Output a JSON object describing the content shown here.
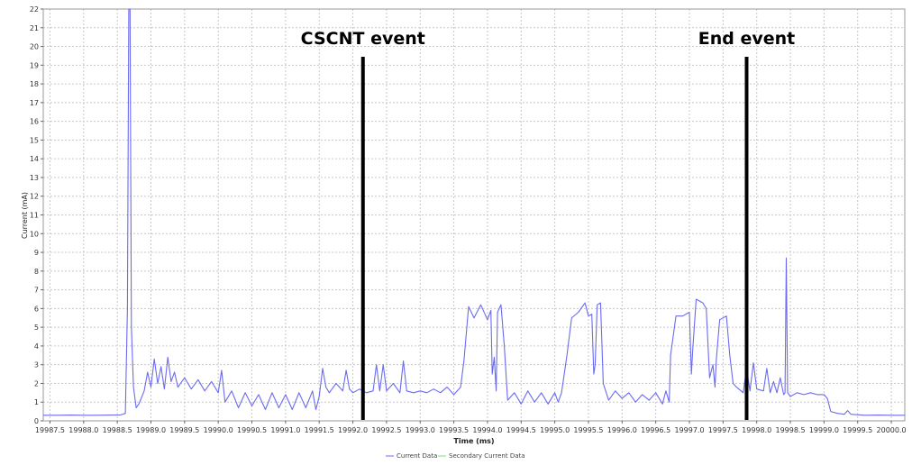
{
  "chart_data": {
    "type": "line",
    "xlabel": "Time (ms)",
    "ylabel": "Current (mA)",
    "xlim": [
      19987.4,
      20000.2
    ],
    "ylim": [
      0,
      22
    ],
    "x_ticks": [
      "19987.5",
      "19988.0",
      "19988.5",
      "19989.0",
      "19989.5",
      "19990.0",
      "19990.5",
      "19991.0",
      "19991.5",
      "19992.0",
      "19992.5",
      "19993.0",
      "19993.5",
      "19994.0",
      "19994.5",
      "19995.0",
      "19995.5",
      "19996.0",
      "19996.5",
      "19997.0",
      "19997.5",
      "19998.0",
      "19998.5",
      "19999.0",
      "19999.5",
      "20000.0"
    ],
    "y_ticks": [
      "0",
      "1",
      "2",
      "3",
      "4",
      "5",
      "6",
      "7",
      "8",
      "9",
      "10",
      "11",
      "12",
      "13",
      "14",
      "15",
      "16",
      "17",
      "18",
      "19",
      "20",
      "21",
      "22"
    ],
    "grid": true,
    "legend_placement": "bottom-center",
    "annotations": [
      {
        "label": "CSCNT event",
        "x": 19992.15
      },
      {
        "label": "End event",
        "x": 19997.85
      }
    ],
    "series": [
      {
        "name": "Current Data",
        "color": "#6b6bf0",
        "points": [
          [
            19987.4,
            0.3
          ],
          [
            19987.6,
            0.3
          ],
          [
            19987.8,
            0.31
          ],
          [
            19988.0,
            0.3
          ],
          [
            19988.2,
            0.3
          ],
          [
            19988.4,
            0.31
          ],
          [
            19988.55,
            0.32
          ],
          [
            19988.62,
            0.4
          ],
          [
            19988.65,
            6.0
          ],
          [
            19988.67,
            22
          ],
          [
            19988.69,
            22
          ],
          [
            19988.71,
            5.0
          ],
          [
            19988.74,
            1.8
          ],
          [
            19988.78,
            0.7
          ],
          [
            19988.82,
            0.9
          ],
          [
            19988.9,
            1.6
          ],
          [
            19988.95,
            2.6
          ],
          [
            19989.0,
            1.8
          ],
          [
            19989.05,
            3.3
          ],
          [
            19989.1,
            2.0
          ],
          [
            19989.15,
            2.9
          ],
          [
            19989.2,
            1.7
          ],
          [
            19989.25,
            3.4
          ],
          [
            19989.3,
            2.1
          ],
          [
            19989.35,
            2.6
          ],
          [
            19989.4,
            1.8
          ],
          [
            19989.5,
            2.3
          ],
          [
            19989.6,
            1.7
          ],
          [
            19989.7,
            2.2
          ],
          [
            19989.8,
            1.6
          ],
          [
            19989.9,
            2.1
          ],
          [
            19990.0,
            1.5
          ],
          [
            19990.05,
            2.7
          ],
          [
            19990.1,
            1.0
          ],
          [
            19990.2,
            1.6
          ],
          [
            19990.3,
            0.7
          ],
          [
            19990.4,
            1.5
          ],
          [
            19990.5,
            0.8
          ],
          [
            19990.6,
            1.4
          ],
          [
            19990.7,
            0.6
          ],
          [
            19990.8,
            1.5
          ],
          [
            19990.9,
            0.7
          ],
          [
            19991.0,
            1.4
          ],
          [
            19991.1,
            0.6
          ],
          [
            19991.2,
            1.5
          ],
          [
            19991.3,
            0.7
          ],
          [
            19991.4,
            1.6
          ],
          [
            19991.45,
            0.6
          ],
          [
            19991.5,
            1.3
          ],
          [
            19991.55,
            2.8
          ],
          [
            19991.6,
            1.8
          ],
          [
            19991.65,
            1.5
          ],
          [
            19991.75,
            2.0
          ],
          [
            19991.85,
            1.6
          ],
          [
            19991.9,
            2.7
          ],
          [
            19991.95,
            1.7
          ],
          [
            19992.0,
            1.5
          ],
          [
            19992.1,
            1.7
          ],
          [
            19992.2,
            1.5
          ],
          [
            19992.3,
            1.6
          ],
          [
            19992.35,
            3.0
          ],
          [
            19992.4,
            1.6
          ],
          [
            19992.45,
            3.0
          ],
          [
            19992.5,
            1.6
          ],
          [
            19992.6,
            2.0
          ],
          [
            19992.7,
            1.5
          ],
          [
            19992.75,
            3.2
          ],
          [
            19992.8,
            1.6
          ],
          [
            19992.9,
            1.5
          ],
          [
            19993.0,
            1.6
          ],
          [
            19993.1,
            1.5
          ],
          [
            19993.2,
            1.7
          ],
          [
            19993.3,
            1.5
          ],
          [
            19993.4,
            1.8
          ],
          [
            19993.5,
            1.4
          ],
          [
            19993.6,
            1.8
          ],
          [
            19993.65,
            3.2
          ],
          [
            19993.72,
            6.1
          ],
          [
            19993.8,
            5.5
          ],
          [
            19993.9,
            6.2
          ],
          [
            19994.0,
            5.4
          ],
          [
            19994.05,
            5.9
          ],
          [
            19994.07,
            2.5
          ],
          [
            19994.1,
            3.4
          ],
          [
            19994.13,
            1.6
          ],
          [
            19994.15,
            5.8
          ],
          [
            19994.2,
            6.2
          ],
          [
            19994.25,
            4.0
          ],
          [
            19994.3,
            1.1
          ],
          [
            19994.4,
            1.5
          ],
          [
            19994.5,
            0.9
          ],
          [
            19994.6,
            1.6
          ],
          [
            19994.7,
            1.0
          ],
          [
            19994.8,
            1.5
          ],
          [
            19994.9,
            0.9
          ],
          [
            19995.0,
            1.5
          ],
          [
            19995.05,
            1.0
          ],
          [
            19995.1,
            1.5
          ],
          [
            19995.18,
            3.5
          ],
          [
            19995.25,
            5.5
          ],
          [
            19995.35,
            5.8
          ],
          [
            19995.45,
            6.3
          ],
          [
            19995.5,
            5.6
          ],
          [
            19995.55,
            5.7
          ],
          [
            19995.58,
            2.5
          ],
          [
            19995.6,
            3.0
          ],
          [
            19995.63,
            6.2
          ],
          [
            19995.68,
            6.3
          ],
          [
            19995.72,
            2.0
          ],
          [
            19995.8,
            1.1
          ],
          [
            19995.9,
            1.6
          ],
          [
            19996.0,
            1.2
          ],
          [
            19996.1,
            1.5
          ],
          [
            19996.2,
            1.0
          ],
          [
            19996.3,
            1.4
          ],
          [
            19996.4,
            1.1
          ],
          [
            19996.5,
            1.5
          ],
          [
            19996.6,
            0.9
          ],
          [
            19996.65,
            1.6
          ],
          [
            19996.7,
            1.0
          ],
          [
            19996.72,
            3.5
          ],
          [
            19996.8,
            5.6
          ],
          [
            19996.9,
            5.6
          ],
          [
            19997.0,
            5.8
          ],
          [
            19997.03,
            2.5
          ],
          [
            19997.05,
            3.8
          ],
          [
            19997.1,
            6.5
          ],
          [
            19997.2,
            6.3
          ],
          [
            19997.25,
            6.0
          ],
          [
            19997.3,
            2.3
          ],
          [
            19997.35,
            3.0
          ],
          [
            19997.38,
            1.8
          ],
          [
            19997.4,
            3.3
          ],
          [
            19997.45,
            5.4
          ],
          [
            19997.55,
            5.6
          ],
          [
            19997.6,
            3.5
          ],
          [
            19997.65,
            2.0
          ],
          [
            19997.7,
            1.8
          ],
          [
            19997.8,
            1.5
          ],
          [
            19997.85,
            2.8
          ],
          [
            19997.9,
            1.6
          ],
          [
            19997.95,
            3.1
          ],
          [
            19998.0,
            1.7
          ],
          [
            19998.1,
            1.6
          ],
          [
            19998.15,
            2.8
          ],
          [
            19998.2,
            1.5
          ],
          [
            19998.25,
            2.1
          ],
          [
            19998.3,
            1.5
          ],
          [
            19998.35,
            2.3
          ],
          [
            19998.4,
            1.4
          ],
          [
            19998.42,
            1.5
          ],
          [
            19998.44,
            8.7
          ],
          [
            19998.46,
            1.5
          ],
          [
            19998.5,
            1.3
          ],
          [
            19998.6,
            1.5
          ],
          [
            19998.7,
            1.4
          ],
          [
            19998.8,
            1.5
          ],
          [
            19998.9,
            1.4
          ],
          [
            19999.0,
            1.4
          ],
          [
            19999.05,
            1.2
          ],
          [
            19999.1,
            0.5
          ],
          [
            19999.2,
            0.4
          ],
          [
            19999.3,
            0.35
          ],
          [
            19999.35,
            0.55
          ],
          [
            19999.4,
            0.35
          ],
          [
            19999.6,
            0.3
          ],
          [
            19999.8,
            0.31
          ],
          [
            20000.0,
            0.3
          ],
          [
            20000.2,
            0.3
          ]
        ]
      },
      {
        "name": "Secondary Current Data",
        "color": "#7bd87b",
        "points": []
      }
    ]
  }
}
